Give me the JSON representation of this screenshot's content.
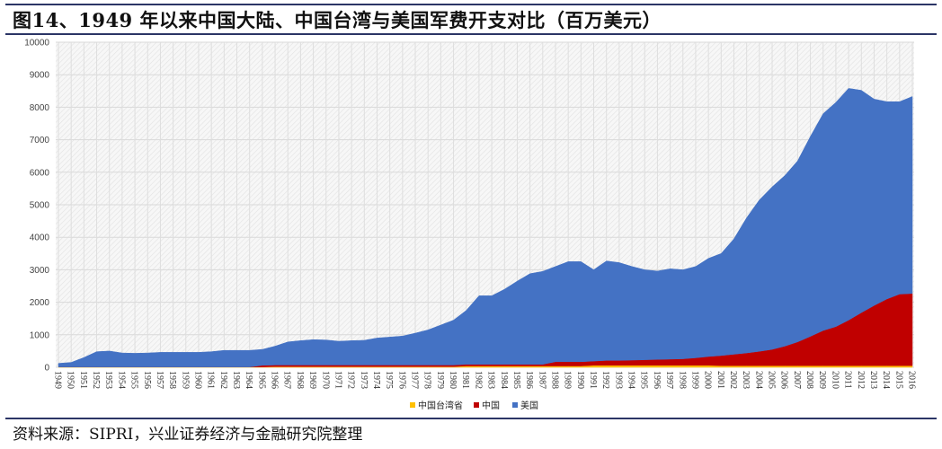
{
  "title": "图14、1949 年以来中国大陆、中国台湾与美国军费开支对比（百万美元）",
  "source": "资料来源：SIPRI，兴业证券经济与金融研究院整理",
  "chart_data": {
    "type": "area",
    "stacked": true,
    "title": "图14、1949 年以来中国大陆、中国台湾与美国军费开支对比（百万美元）",
    "xlabel": "",
    "ylabel": "",
    "ylim": [
      0,
      10000
    ],
    "yticks": [
      0,
      1000,
      2000,
      3000,
      4000,
      5000,
      6000,
      7000,
      8000,
      9000,
      10000
    ],
    "grid": true,
    "legend_position": "bottom",
    "x": [
      1949,
      1950,
      1951,
      1952,
      1953,
      1954,
      1955,
      1956,
      1957,
      1958,
      1959,
      1960,
      1961,
      1962,
      1963,
      1964,
      1965,
      1966,
      1967,
      1968,
      1969,
      1970,
      1971,
      1972,
      1973,
      1974,
      1975,
      1976,
      1977,
      1978,
      1979,
      1980,
      1981,
      1982,
      1983,
      1984,
      1985,
      1986,
      1987,
      1988,
      1989,
      1990,
      1991,
      1992,
      1993,
      1994,
      1995,
      1996,
      1997,
      1998,
      1999,
      2000,
      2001,
      2002,
      2003,
      2004,
      2005,
      2006,
      2007,
      2008,
      2009,
      2010,
      2011,
      2012,
      2013,
      2014,
      2015,
      2016
    ],
    "series": [
      {
        "name": "中国台湾省",
        "color": "#ffc000",
        "values": [
          10,
          10,
          10,
          10,
          10,
          10,
          10,
          10,
          10,
          10,
          10,
          10,
          10,
          10,
          10,
          10,
          10,
          20,
          20,
          20,
          20,
          20,
          20,
          20,
          20,
          20,
          20,
          20,
          20,
          20,
          20,
          20,
          40,
          40,
          40,
          40,
          40,
          40,
          40,
          40,
          40,
          40,
          60,
          60,
          60,
          60,
          60,
          60,
          60,
          60,
          60,
          60,
          50,
          50,
          50,
          50,
          50,
          50,
          50,
          50,
          50,
          50,
          50,
          50,
          50,
          50,
          50,
          50
        ]
      },
      {
        "name": "中国",
        "color": "#c00000",
        "values": [
          0,
          0,
          0,
          0,
          0,
          0,
          0,
          0,
          0,
          0,
          0,
          0,
          0,
          0,
          0,
          0,
          50,
          50,
          50,
          50,
          50,
          50,
          50,
          50,
          50,
          50,
          50,
          50,
          50,
          50,
          50,
          50,
          50,
          50,
          50,
          50,
          50,
          50,
          50,
          130,
          130,
          130,
          130,
          150,
          150,
          160,
          170,
          180,
          190,
          200,
          230,
          270,
          310,
          350,
          390,
          440,
          500,
          600,
          730,
          900,
          1080,
          1200,
          1400,
          1630,
          1850,
          2050,
          2200,
          2220
        ]
      },
      {
        "name": "美国",
        "color": "#4472c4",
        "values": [
          110,
          140,
          290,
          470,
          490,
          430,
          420,
          430,
          450,
          450,
          450,
          450,
          470,
          510,
          510,
          510,
          490,
          580,
          710,
          750,
          780,
          770,
          730,
          750,
          760,
          830,
          860,
          890,
          980,
          1080,
          1230,
          1380,
          1660,
          2110,
          2110,
          2310,
          2560,
          2790,
          2860,
          2930,
          3080,
          3080,
          2810,
          3060,
          3010,
          2880,
          2770,
          2720,
          2780,
          2740,
          2810,
          3020,
          3140,
          3550,
          4160,
          4660,
          5000,
          5250,
          5570,
          6150,
          6670,
          6900,
          7130,
          6840,
          6350,
          6070,
          5920,
          6060
        ]
      }
    ]
  }
}
